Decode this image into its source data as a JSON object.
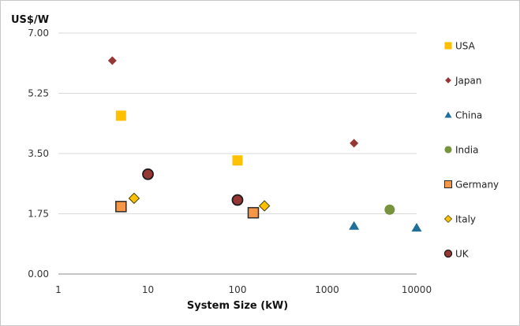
{
  "chart_data": {
    "type": "scatter",
    "title": "",
    "ylabel": "US$/W",
    "xlabel": "System Size (kW)",
    "x_scale": "log",
    "xlim": [
      1,
      10000
    ],
    "ylim": [
      0,
      7
    ],
    "y_ticks": [
      "0.00",
      "1.75",
      "3.50",
      "5.25",
      "7.00"
    ],
    "y_tick_values": [
      0,
      1.75,
      3.5,
      5.25,
      7
    ],
    "x_ticks": [
      "1",
      "10",
      "100",
      "1000",
      "10000"
    ],
    "x_tick_values": [
      1,
      10,
      100,
      1000,
      10000
    ],
    "grid": "horizontal",
    "legend_position": "right",
    "series": [
      {
        "name": "USA",
        "marker": "square",
        "color": "#FFC000",
        "stroke": "#FFC000",
        "points": [
          [
            5,
            4.6
          ],
          [
            100,
            3.3
          ]
        ]
      },
      {
        "name": "Japan",
        "marker": "diamond",
        "color": "#953735",
        "stroke": "#953735",
        "points": [
          [
            4,
            6.2
          ],
          [
            2000,
            3.8
          ]
        ]
      },
      {
        "name": "China",
        "marker": "triangle",
        "color": "#1F6F9A",
        "stroke": "#1F6F9A",
        "points": [
          [
            2000,
            1.4
          ],
          [
            10000,
            1.35
          ]
        ]
      },
      {
        "name": "India",
        "marker": "circle",
        "color": "#77933C",
        "stroke": "#77933C",
        "points": [
          [
            5000,
            1.87
          ]
        ]
      },
      {
        "name": "Germany",
        "marker": "square-outlined",
        "color": "#F79646",
        "stroke": "#2B2B2B",
        "points": [
          [
            5,
            1.96
          ],
          [
            150,
            1.78
          ]
        ]
      },
      {
        "name": "Italy",
        "marker": "diamond-outlined",
        "color": "#FFC000",
        "stroke": "#3A3A00",
        "points": [
          [
            7,
            2.2
          ],
          [
            200,
            1.98
          ]
        ]
      },
      {
        "name": "UK",
        "marker": "circle-outlined",
        "color": "#953735",
        "stroke": "#1A1A1A",
        "points": [
          [
            10,
            2.9
          ],
          [
            100,
            2.15
          ]
        ]
      }
    ]
  }
}
